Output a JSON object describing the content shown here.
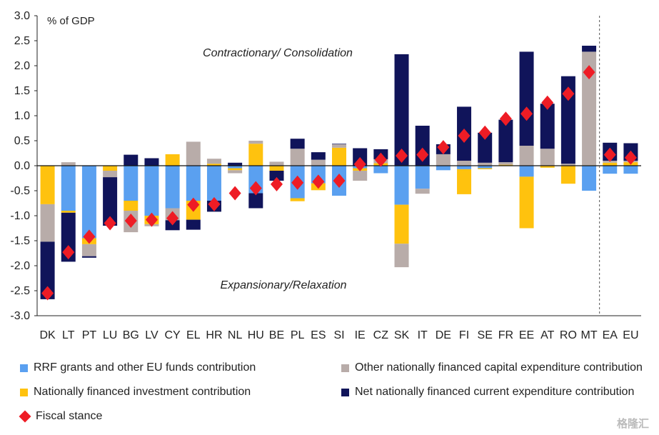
{
  "chart_data": {
    "type": "bar",
    "stacked": true,
    "unit_label": "% of GDP",
    "ylim": [
      -3.0,
      3.0
    ],
    "yticks": [
      "3.0",
      "2.5",
      "2.0",
      "1.5",
      "1.0",
      "0.5",
      "0.0",
      "-0.5",
      "-1.0",
      "-1.5",
      "-2.0",
      "-2.5",
      "-3.0"
    ],
    "categories": [
      "DK",
      "LT",
      "PT",
      "LU",
      "BG",
      "LV",
      "CY",
      "EL",
      "HR",
      "NL",
      "HU",
      "BE",
      "PL",
      "ES",
      "SI",
      "IE",
      "CZ",
      "SK",
      "IT",
      "DE",
      "FI",
      "SE",
      "FR",
      "EE",
      "AT",
      "RO",
      "MT",
      "EA",
      "EU"
    ],
    "annotations": {
      "top": "Contractionary/ Consolidation",
      "bottom": "Expansionary/Relaxation"
    },
    "series": [
      {
        "name": "RRF grants and other EU funds contribution",
        "color": "#5aa0f0",
        "values": [
          0,
          -0.9,
          -1.45,
          0,
          -0.7,
          -1.0,
          -0.85,
          -0.7,
          -0.7,
          -0.05,
          -0.55,
          0,
          -0.65,
          -0.35,
          -0.6,
          -0.05,
          -0.15,
          -0.78,
          -0.46,
          -0.09,
          -0.07,
          -0.05,
          0,
          -0.22,
          0,
          0,
          -0.5,
          -0.16,
          -0.16
        ]
      },
      {
        "name": "Nationally financed investment contribution",
        "color": "#ffc20e",
        "values": [
          -0.77,
          -0.04,
          -0.12,
          -0.1,
          -0.2,
          -0.17,
          0.23,
          -0.38,
          0.04,
          -0.04,
          0.44,
          -0.1,
          -0.06,
          -0.14,
          0.36,
          -0.05,
          0.05,
          -0.78,
          0,
          0,
          -0.5,
          -0.02,
          0.02,
          -1.03,
          -0.04,
          -0.36,
          0.01,
          0.06,
          0.07
        ]
      },
      {
        "name": "Other nationally financed capital expenditure contribution",
        "color": "#b8aca9",
        "values": [
          -0.75,
          0.07,
          -0.24,
          -0.13,
          -0.43,
          -0.04,
          -0.24,
          0.48,
          0.1,
          -0.06,
          0.06,
          0.08,
          0.34,
          0.12,
          0.07,
          -0.2,
          0.08,
          -0.47,
          -0.1,
          0.23,
          0.1,
          0.06,
          0.05,
          0.4,
          0.34,
          0.04,
          2.27,
          0.04,
          0.03
        ]
      },
      {
        "name": "Net nationally financed current expenditure contribution",
        "color": "#10145a",
        "values": [
          -1.15,
          -0.98,
          -0.03,
          -0.97,
          0.22,
          0.15,
          -0.2,
          -0.2,
          -0.22,
          0.06,
          -0.3,
          -0.2,
          0.2,
          0.15,
          0.01,
          0.35,
          0.2,
          2.23,
          0.8,
          0.2,
          1.08,
          0.6,
          0.85,
          1.88,
          0.9,
          1.75,
          0.12,
          0.36,
          0.35
        ]
      },
      {
        "name": "Fiscal stance",
        "type": "marker",
        "color": "#ee1c25",
        "values": [
          -2.55,
          -1.73,
          -1.42,
          -1.15,
          -1.1,
          -1.08,
          -1.05,
          -0.78,
          -0.77,
          -0.55,
          -0.45,
          -0.37,
          -0.34,
          -0.32,
          -0.3,
          0.03,
          0.12,
          0.2,
          0.22,
          0.37,
          0.6,
          0.66,
          0.94,
          1.04,
          1.26,
          1.44,
          1.87,
          0.22,
          0.16
        ]
      }
    ],
    "legend_placement": "bottom",
    "grid": false,
    "divider_after": "MT"
  },
  "watermark": "格隆汇"
}
